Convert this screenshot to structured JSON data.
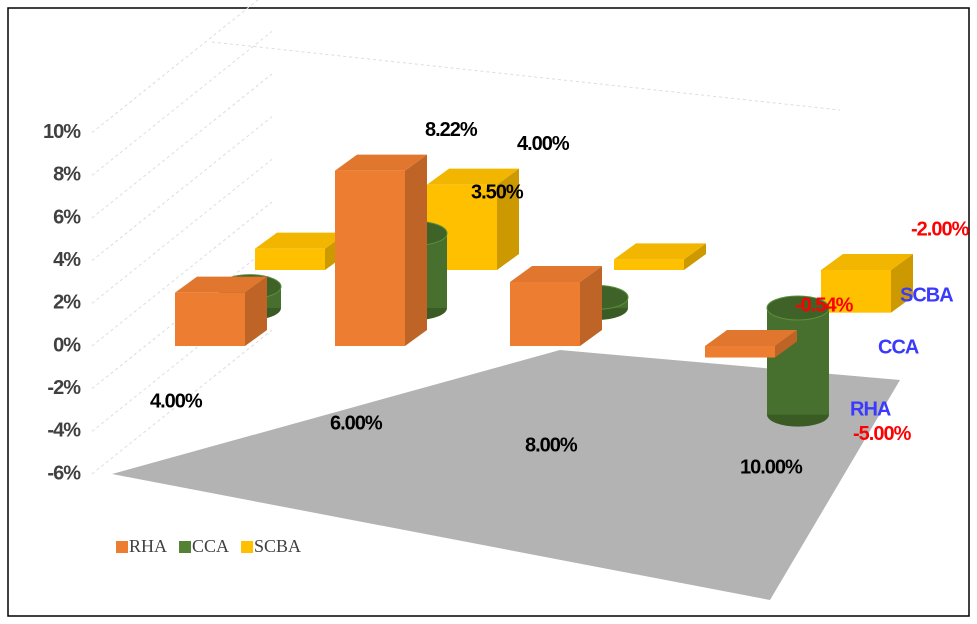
{
  "chart_data": {
    "type": "bar3d",
    "categories": [
      "4.00%",
      "6.00%",
      "8.00%",
      "10.00%"
    ],
    "series": [
      {
        "name": "RHA",
        "color": "#ed7d31",
        "values": [
          2.5,
          8.22,
          3,
          -0.54
        ],
        "value_labels": [
          null,
          "8.22%",
          null,
          "-0.54%"
        ]
      },
      {
        "name": "CCA",
        "color": "#548235",
        "values": [
          1,
          3.5,
          0.5,
          -5
        ],
        "value_labels": [
          null,
          "3.50%",
          null,
          "-5.00%"
        ]
      },
      {
        "name": "SCBA",
        "color": "#ffc000",
        "values": [
          1,
          4,
          0.5,
          -2
        ],
        "value_labels": [
          null,
          "4.00%",
          null,
          "-2.00%"
        ]
      }
    ],
    "ylim": [
      -6,
      10
    ],
    "yticks": [
      {
        "value": -6,
        "label": "-6%"
      },
      {
        "value": -4,
        "label": "-4%"
      },
      {
        "value": -2,
        "label": "-2%"
      },
      {
        "value": 0,
        "label": "0%"
      },
      {
        "value": 2,
        "label": "2%"
      },
      {
        "value": 4,
        "label": "4%"
      },
      {
        "value": 6,
        "label": "6%"
      },
      {
        "value": 8,
        "label": "8%"
      },
      {
        "value": 10,
        "label": "10%"
      }
    ],
    "grid": true,
    "legend": "bottom-left"
  }
}
